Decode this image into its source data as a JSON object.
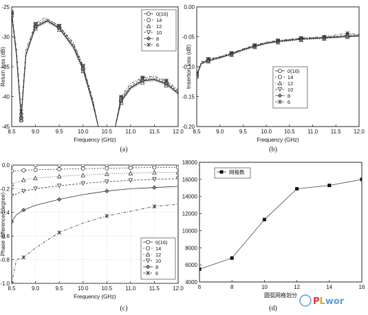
{
  "chart_data": [
    {
      "type": "line",
      "caption": "(a)",
      "xlabel": "Frequency (GHz)",
      "ylabel": "Return loss (dB)",
      "xlim": [
        8.5,
        12.0
      ],
      "ylim": [
        -45,
        -25
      ],
      "xticks": [
        "8.5",
        "9.0",
        "9.5",
        "10.0",
        "10.5",
        "11.0",
        "11.5",
        "12.0"
      ],
      "yticks": [
        "-25",
        "-30",
        "-35",
        "-40",
        "-45"
      ],
      "grid": false,
      "legend": "top-right",
      "series": [
        {
          "name": "0(16)",
          "x": [
            8.5,
            8.6,
            8.7,
            8.8,
            9.0,
            9.25,
            9.5,
            9.8,
            10.0,
            10.2,
            10.35,
            10.65,
            10.8,
            11.0,
            11.25,
            11.5,
            11.75,
            12.0
          ],
          "y": [
            -26.2,
            -33,
            -43.5,
            -33,
            -28.4,
            -27.4,
            -28.6,
            -31.8,
            -35.5,
            -41,
            -46,
            -46,
            -40.8,
            -38.6,
            -37.4,
            -37.2,
            -37.9,
            -39.5
          ]
        },
        {
          "name": "14",
          "x": [
            8.5,
            8.6,
            8.7,
            8.8,
            9.0,
            9.25,
            9.5,
            9.8,
            10.0,
            10.2,
            10.35,
            10.65,
            10.8,
            11.0,
            11.25,
            11.5,
            11.75,
            12.0
          ],
          "y": [
            -26.0,
            -33,
            -44,
            -33,
            -28.2,
            -27.2,
            -28.4,
            -31.5,
            -35.2,
            -40.8,
            -46,
            -46,
            -40.5,
            -38.4,
            -37.2,
            -37.0,
            -37.7,
            -39.3
          ]
        },
        {
          "name": "12",
          "x": [
            8.5,
            8.6,
            8.7,
            8.8,
            9.0,
            9.25,
            9.5,
            9.8,
            10.0,
            10.2,
            10.35,
            10.65,
            10.8,
            11.0,
            11.25,
            11.5,
            11.75,
            12.0
          ],
          "y": [
            -26.4,
            -33.3,
            -43.8,
            -33.2,
            -28.6,
            -27.6,
            -28.8,
            -32.0,
            -35.7,
            -41.2,
            -46,
            -46,
            -41.0,
            -38.8,
            -37.6,
            -37.4,
            -38.1,
            -39.7
          ]
        },
        {
          "name": "10",
          "x": [
            8.5,
            8.6,
            8.7,
            8.8,
            9.0,
            9.25,
            9.5,
            9.8,
            10.0,
            10.2,
            10.35,
            10.65,
            10.8,
            11.0,
            11.25,
            11.5,
            11.75,
            12.0
          ],
          "y": [
            -26.1,
            -32.8,
            -43.2,
            -32.8,
            -28.0,
            -27.0,
            -28.2,
            -31.3,
            -35.0,
            -40.5,
            -46,
            -46,
            -40.3,
            -38.2,
            -37.0,
            -36.8,
            -37.5,
            -39.1
          ]
        },
        {
          "name": "8",
          "x": [
            8.5,
            8.6,
            8.7,
            8.8,
            9.0,
            9.25,
            9.5,
            9.8,
            10.0,
            10.2,
            10.35,
            10.65,
            10.8,
            11.0,
            11.25,
            11.5,
            11.75,
            12.0
          ],
          "y": [
            -26.3,
            -33.1,
            -43.6,
            -33.1,
            -28.3,
            -27.3,
            -28.5,
            -31.7,
            -35.4,
            -40.9,
            -46,
            -46,
            -40.7,
            -38.5,
            -37.3,
            -37.1,
            -37.8,
            -39.4
          ]
        },
        {
          "name": "6",
          "x": [
            8.5,
            8.6,
            8.7,
            8.8,
            9.0,
            9.2,
            9.5,
            9.8,
            10.0,
            10.2,
            10.35,
            10.65,
            10.8,
            11.0,
            11.25,
            11.5,
            11.75,
            12.0
          ],
          "y": [
            -25.8,
            -32,
            -42.5,
            -32.2,
            -27.8,
            -26.8,
            -28.2,
            -31.0,
            -34.8,
            -40.3,
            -46,
            -46,
            -40.0,
            -37.8,
            -36.8,
            -36.6,
            -37.3,
            -38.9
          ]
        }
      ]
    },
    {
      "type": "line",
      "caption": "(b)",
      "xlabel": "Frequency (GHz)",
      "ylabel": "Insertion loss (dB)",
      "xlim": [
        8.5,
        12.0
      ],
      "ylim": [
        -0.2,
        0.0
      ],
      "xticks": [
        "8.5",
        "9.0",
        "9.5",
        "10.0",
        "10.5",
        "11.0",
        "11.5",
        "12.0"
      ],
      "yticks": [
        "0.00",
        "-0.05",
        "-0.10",
        "-0.15",
        "-0.20"
      ],
      "grid": false,
      "legend": "center",
      "series": [
        {
          "name": "0(16)",
          "x": [
            8.5,
            8.6,
            8.75,
            9.0,
            9.25,
            9.5,
            9.75,
            10.0,
            10.25,
            10.5,
            10.75,
            11.0,
            11.25,
            11.5,
            11.75,
            12.0
          ],
          "y": [
            -0.115,
            -0.095,
            -0.09,
            -0.085,
            -0.079,
            -0.072,
            -0.066,
            -0.061,
            -0.058,
            -0.056,
            -0.054,
            -0.053,
            -0.052,
            -0.051,
            -0.05,
            -0.049
          ]
        },
        {
          "name": "14",
          "x": [
            8.5,
            8.6,
            8.75,
            9.0,
            9.25,
            9.5,
            9.75,
            10.0,
            10.25,
            10.5,
            10.75,
            11.0,
            11.25,
            11.5,
            11.75,
            12.0
          ],
          "y": [
            -0.114,
            -0.094,
            -0.089,
            -0.084,
            -0.078,
            -0.071,
            -0.065,
            -0.06,
            -0.057,
            -0.055,
            -0.053,
            -0.052,
            -0.051,
            -0.05,
            -0.049,
            -0.048
          ]
        },
        {
          "name": "12",
          "x": [
            8.5,
            8.6,
            8.75,
            9.0,
            9.25,
            9.5,
            9.75,
            10.0,
            10.25,
            10.5,
            10.75,
            11.0,
            11.25,
            11.5,
            11.75,
            12.0
          ],
          "y": [
            -0.116,
            -0.096,
            -0.091,
            -0.086,
            -0.08,
            -0.073,
            -0.067,
            -0.062,
            -0.059,
            -0.057,
            -0.055,
            -0.054,
            -0.053,
            -0.052,
            -0.05,
            -0.049
          ]
        },
        {
          "name": "10",
          "x": [
            8.5,
            8.6,
            8.75,
            9.0,
            9.25,
            9.5,
            9.75,
            10.0,
            10.25,
            10.5,
            10.75,
            11.0,
            11.25,
            11.5,
            11.75,
            12.0
          ],
          "y": [
            -0.113,
            -0.093,
            -0.088,
            -0.084,
            -0.078,
            -0.071,
            -0.065,
            -0.06,
            -0.057,
            -0.055,
            -0.053,
            -0.052,
            -0.051,
            -0.049,
            -0.047,
            -0.047
          ]
        },
        {
          "name": "8",
          "x": [
            8.5,
            8.6,
            8.75,
            9.0,
            9.25,
            9.5,
            9.75,
            10.0,
            10.25,
            10.5,
            10.75,
            11.0,
            11.25,
            11.5,
            11.75,
            12.0
          ],
          "y": [
            -0.115,
            -0.095,
            -0.09,
            -0.085,
            -0.079,
            -0.072,
            -0.066,
            -0.061,
            -0.058,
            -0.056,
            -0.054,
            -0.053,
            -0.052,
            -0.05,
            -0.049,
            -0.048
          ]
        },
        {
          "name": "6",
          "x": [
            8.5,
            8.6,
            8.75,
            9.0,
            9.25,
            9.5,
            9.75,
            10.0,
            10.25,
            10.5,
            10.75,
            11.0,
            11.25,
            11.5,
            11.75,
            12.0
          ],
          "y": [
            -0.112,
            -0.092,
            -0.087,
            -0.083,
            -0.077,
            -0.07,
            -0.064,
            -0.059,
            -0.056,
            -0.054,
            -0.052,
            -0.051,
            -0.05,
            -0.047,
            -0.044,
            -0.046
          ]
        }
      ]
    },
    {
      "type": "line",
      "caption": "(c)",
      "xlabel": "Frequency (GHz)",
      "ylabel": "Phase difference (degree)",
      "xlim": [
        8.5,
        12.0
      ],
      "ylim": [
        -1.0,
        0.0
      ],
      "xticks": [
        "8.5",
        "9.0",
        "9.5",
        "10.0",
        "10.5",
        "11.0",
        "11.5",
        "12.0"
      ],
      "yticks": [
        "0.0",
        "-0.2",
        "-0.4",
        "-0.6",
        "-0.8",
        "-1.0"
      ],
      "grid": true,
      "legend": "bottom-right",
      "series": [
        {
          "name": "0(16)",
          "x": [
            8.5,
            9.0,
            9.5,
            10.0,
            10.5,
            11.0,
            11.5,
            12.0
          ],
          "y": [
            0.0,
            0.0,
            0.0,
            0.0,
            0.0,
            0.0,
            0.0,
            0.0
          ]
        },
        {
          "name": "14",
          "x": [
            8.5,
            8.75,
            9.0,
            9.5,
            10.0,
            10.5,
            11.0,
            11.5,
            12.0
          ],
          "y": [
            -0.05,
            -0.045,
            -0.04,
            -0.035,
            -0.03,
            -0.027,
            -0.024,
            -0.02,
            -0.02
          ]
        },
        {
          "name": "12",
          "x": [
            8.5,
            8.75,
            9.0,
            9.5,
            10.0,
            10.5,
            11.0,
            11.5,
            12.0
          ],
          "y": [
            -0.16,
            -0.125,
            -0.11,
            -0.095,
            -0.085,
            -0.075,
            -0.068,
            -0.062,
            -0.06
          ]
        },
        {
          "name": "10",
          "x": [
            8.5,
            8.75,
            9.0,
            9.5,
            10.0,
            10.5,
            11.0,
            11.5,
            12.0
          ],
          "y": [
            -0.26,
            -0.22,
            -0.2,
            -0.175,
            -0.155,
            -0.14,
            -0.13,
            -0.12,
            -0.115
          ]
        },
        {
          "name": "8",
          "x": [
            8.5,
            8.6,
            8.75,
            9.0,
            9.5,
            10.0,
            10.5,
            11.0,
            11.5,
            12.0
          ],
          "y": [
            -0.48,
            -0.42,
            -0.38,
            -0.34,
            -0.29,
            -0.25,
            -0.22,
            -0.2,
            -0.19,
            -0.18
          ]
        },
        {
          "name": "6",
          "x": [
            8.5,
            8.6,
            8.75,
            9.0,
            9.5,
            10.0,
            10.5,
            11.0,
            11.5,
            12.0
          ],
          "y": [
            -1.0,
            -0.8,
            -0.78,
            -0.7,
            -0.57,
            -0.49,
            -0.43,
            -0.39,
            -0.35,
            -0.33
          ]
        }
      ]
    },
    {
      "type": "line",
      "caption": "(d)",
      "xlabel": "圆弧网格划分",
      "ylabel": "",
      "xlim": [
        6,
        16
      ],
      "ylim": [
        4000,
        18000
      ],
      "xticks": [
        "6",
        "8",
        "10",
        "12",
        "14",
        "16"
      ],
      "yticks": [
        "18000",
        "16000",
        "14000",
        "12000",
        "10000",
        "8000",
        "6000",
        "4000"
      ],
      "grid": false,
      "legend": "top-left",
      "series": [
        {
          "name": "网格数",
          "x": [
            6,
            8,
            10,
            12,
            14,
            16
          ],
          "y": [
            5500,
            6800,
            11300,
            14900,
            15300,
            16000
          ]
        }
      ]
    }
  ],
  "watermark": {
    "text": "PLwor",
    "colors": {
      "p": "#e03030",
      "l": "#e8a020",
      "rest": "#5aa0d0"
    }
  }
}
